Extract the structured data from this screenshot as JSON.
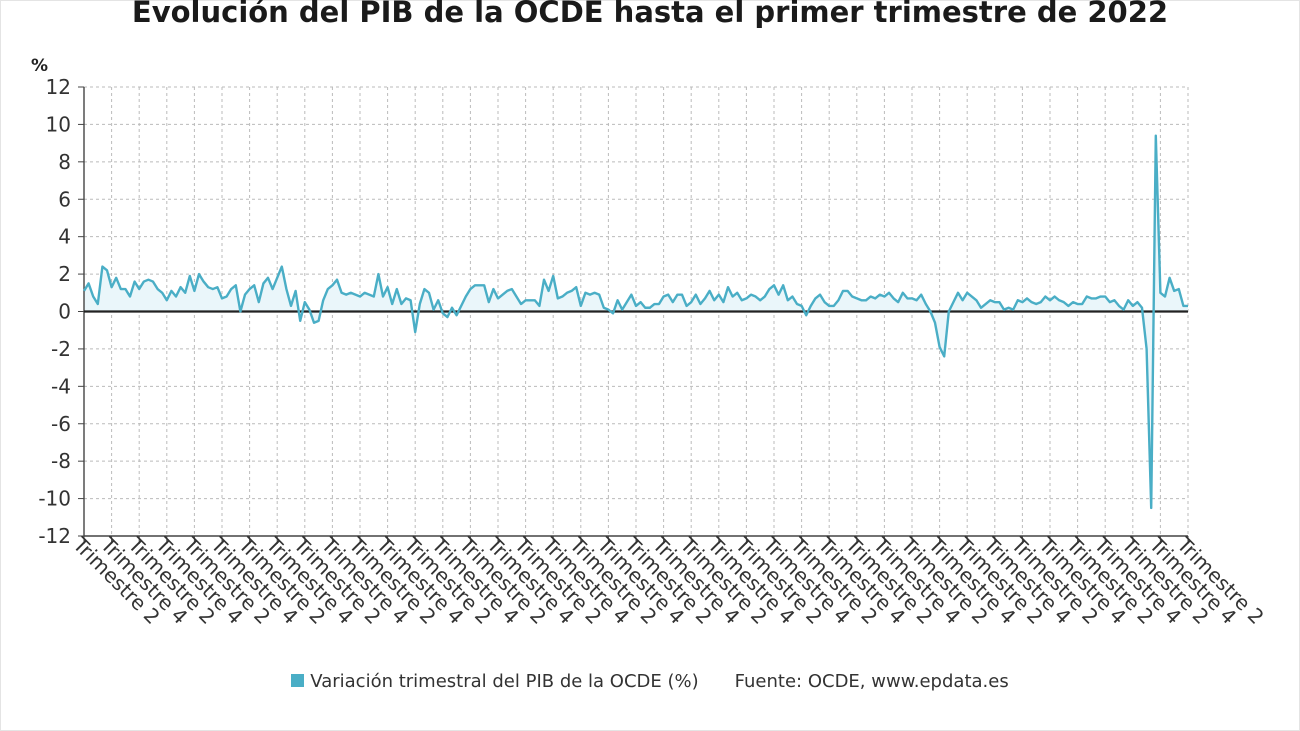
{
  "title": "Evolución del PIB de la OCDE hasta el primer trimestre de 2022",
  "legend": {
    "series_label": "Variación trimestral del PIB de la OCDE (%)",
    "source": "Fuente: OCDE, www.epdata.es"
  },
  "colors": {
    "series": "#4aaec6",
    "area_fill": "#eaf6fa",
    "grid": "#bbbbbb",
    "zero_line": "#222222"
  },
  "chart_data": {
    "type": "line",
    "title": "Evolución del PIB de la OCDE hasta el primer trimestre de 2022",
    "ylabel": "%",
    "ylim": [
      -12,
      12
    ],
    "yticks": [
      12,
      10,
      8,
      6,
      4,
      2,
      0,
      -2,
      -4,
      -6,
      -8,
      -10,
      -12
    ],
    "grid": true,
    "x_tick_labels": [
      "Trimestre 2",
      "Trimestre 4",
      "Trimestre 2",
      "Trimestre 4",
      "Trimestre 2",
      "Trimestre 4",
      "Trimestre 2",
      "Trimestre 4",
      "Trimestre 2",
      "Trimestre 4",
      "Trimestre 2",
      "Trimestre 4",
      "Trimestre 2",
      "Trimestre 4",
      "Trimestre 2",
      "Trimestre 4",
      "Trimestre 2",
      "Trimestre 4",
      "Trimestre 2",
      "Trimestre 4",
      "Trimestre 2",
      "Trimestre 4",
      "Trimestre 2",
      "Trimestre 4",
      "Trimestre 2",
      "Trimestre 4",
      "Trimestre 2",
      "Trimestre 4",
      "Trimestre 2",
      "Trimestre 4",
      "Trimestre 2",
      "Trimestre 4",
      "Trimestre 2",
      "Trimestre 4",
      "Trimestre 2",
      "Trimestre 4",
      "Trimestre 2",
      "Trimestre 4",
      "Trimestre 2",
      "Trimestre 4",
      "Trimestre 2"
    ],
    "series": [
      {
        "name": "Variación trimestral del PIB de la OCDE (%)",
        "values": [
          1.1,
          1.5,
          0.8,
          0.4,
          2.4,
          2.2,
          1.3,
          1.8,
          1.2,
          1.2,
          0.8,
          1.6,
          1.2,
          1.6,
          1.7,
          1.6,
          1.2,
          1.0,
          0.6,
          1.1,
          0.8,
          1.3,
          1.0,
          1.9,
          1.1,
          2.0,
          1.6,
          1.3,
          1.2,
          1.3,
          0.7,
          0.8,
          1.2,
          1.4,
          0.0,
          0.9,
          1.2,
          1.4,
          0.5,
          1.5,
          1.8,
          1.2,
          1.8,
          2.4,
          1.2,
          0.3,
          1.1,
          -0.5,
          0.5,
          0.1,
          -0.6,
          -0.5,
          0.6,
          1.2,
          1.4,
          1.7,
          1.0,
          0.9,
          1.0,
          0.9,
          0.8,
          1.0,
          0.9,
          0.8,
          2.0,
          0.8,
          1.3,
          0.4,
          1.2,
          0.4,
          0.7,
          0.6,
          -1.1,
          0.4,
          1.2,
          1.0,
          0.1,
          0.6,
          -0.1,
          -0.3,
          0.2,
          -0.2,
          0.3,
          0.8,
          1.2,
          1.4,
          1.4,
          1.4,
          0.5,
          1.2,
          0.7,
          0.9,
          1.1,
          1.2,
          0.8,
          0.4,
          0.6,
          0.6,
          0.6,
          0.3,
          1.7,
          1.1,
          1.9,
          0.7,
          0.8,
          1.0,
          1.1,
          1.3,
          0.3,
          1.0,
          0.9,
          1.0,
          0.9,
          0.2,
          0.1,
          -0.1,
          0.6,
          0.1,
          0.5,
          0.9,
          0.3,
          0.5,
          0.2,
          0.2,
          0.4,
          0.4,
          0.8,
          0.9,
          0.5,
          0.9,
          0.9,
          0.3,
          0.5,
          0.9,
          0.4,
          0.7,
          1.1,
          0.6,
          0.9,
          0.5,
          1.3,
          0.8,
          1.0,
          0.6,
          0.7,
          0.9,
          0.8,
          0.6,
          0.8,
          1.2,
          1.4,
          0.9,
          1.4,
          0.6,
          0.8,
          0.4,
          0.3,
          -0.2,
          0.3,
          0.7,
          0.9,
          0.5,
          0.3,
          0.3,
          0.6,
          1.1,
          1.1,
          0.8,
          0.7,
          0.6,
          0.6,
          0.8,
          0.7,
          0.9,
          0.8,
          1.0,
          0.7,
          0.5,
          1.0,
          0.7,
          0.7,
          0.6,
          0.9,
          0.4,
          0.0,
          -0.6,
          -1.9,
          -2.4,
          0.0,
          0.5,
          1.0,
          0.6,
          1.0,
          0.8,
          0.6,
          0.2,
          0.4,
          0.6,
          0.5,
          0.5,
          0.1,
          0.2,
          0.1,
          0.6,
          0.5,
          0.7,
          0.5,
          0.4,
          0.5,
          0.8,
          0.6,
          0.8,
          0.6,
          0.5,
          0.3,
          0.5,
          0.4,
          0.4,
          0.8,
          0.7,
          0.7,
          0.8,
          0.8,
          0.5,
          0.6,
          0.3,
          0.1,
          0.6,
          0.3,
          0.5,
          0.2,
          -2.0,
          -10.5,
          9.4,
          1.0,
          0.8,
          1.8,
          1.1,
          1.2,
          0.3,
          0.3
        ]
      }
    ]
  }
}
